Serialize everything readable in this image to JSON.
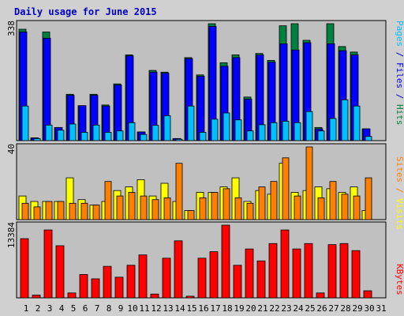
{
  "colors": {
    "background": "#d0d0d0",
    "panel": "#c0c0c0",
    "hits": "#008040",
    "files": "#0000ff",
    "pages": "#00c0ff",
    "visits": "#ffff00",
    "sites": "#ff8000",
    "kbytes": "#ff0000",
    "weekend": "#008040",
    "title": "#0000c0"
  },
  "chart_data": {
    "type": "bar",
    "title": "Daily usage for June 2015",
    "categories": [
      "1",
      "2",
      "3",
      "4",
      "5",
      "6",
      "7",
      "8",
      "9",
      "10",
      "11",
      "12",
      "13",
      "14",
      "15",
      "16",
      "17",
      "18",
      "19",
      "20",
      "21",
      "22",
      "23",
      "24",
      "25",
      "26",
      "27",
      "28",
      "29",
      "30",
      "31"
    ],
    "weekend_days": [
      "6",
      "7",
      "13",
      "14",
      "20",
      "21",
      "27",
      "28"
    ],
    "panels": [
      {
        "id": "hits-files-pages",
        "ymax_label": "338",
        "ylim": [
          0,
          338
        ],
        "right_labels": [
          "Pages",
          "Files",
          "Hits"
        ],
        "series": [
          {
            "name": "Hits",
            "values": [
              322,
              8,
              314,
              38,
              134,
              101,
              134,
              103,
              164,
              248,
              25,
              203,
              198,
              6,
              240,
              190,
              338,
              225,
              248,
              126,
              252,
              232,
              332,
              338,
              290,
              38,
              338,
              272,
              256,
              34,
              0
            ]
          },
          {
            "name": "Files",
            "values": [
              314,
              8,
              296,
              38,
              131,
              101,
              131,
              100,
              161,
              245,
              25,
              198,
              195,
              6,
              237,
              186,
              330,
              215,
              240,
              120,
              248,
              227,
              280,
              262,
              283,
              34,
              280,
              260,
              248,
              34,
              0
            ]
          },
          {
            "name": "Pages",
            "values": [
              100,
              6,
              45,
              30,
              48,
              24,
              45,
              24,
              28,
              52,
              18,
              44,
              72,
              4,
              100,
              24,
              62,
              80,
              60,
              28,
              46,
              52,
              56,
              52,
              84,
              28,
              64,
              118,
              100,
              12,
              0
            ]
          }
        ]
      },
      {
        "id": "visits-sites",
        "ymax_label": "40",
        "ylim": [
          0,
          40
        ],
        "right_labels": [
          "Sites",
          "Visits"
        ],
        "series": [
          {
            "name": "Visits",
            "values": [
              13,
              10,
              10,
              10,
              23,
              11,
              8,
              10,
              16,
              18,
              22,
              13,
              20,
              10,
              5,
              15,
              15,
              18,
              23,
              10,
              16,
              14,
              31,
              15,
              16,
              18,
              17,
              15,
              18,
              5,
              0
            ]
          },
          {
            "name": "Sites",
            "values": [
              9,
              7,
              10,
              10,
              9,
              9,
              8,
              21,
              13,
              15,
              13,
              11,
              12,
              31,
              5,
              12,
              15,
              17,
              12,
              9,
              18,
              21,
              34,
              13,
              40,
              12,
              21,
              14,
              13,
              23,
              0
            ]
          }
        ]
      },
      {
        "id": "kbytes",
        "ymax_label": "13384",
        "ylim": [
          0,
          13384
        ],
        "right_labels": [
          "KBytes"
        ],
        "series": [
          {
            "name": "KBytes",
            "values": [
              10900,
              500,
              12500,
              9600,
              900,
              4300,
              3500,
              5800,
              3800,
              6000,
              7900,
              700,
              7300,
              10500,
              300,
              7300,
              8500,
              13384,
              6000,
              9000,
              6800,
              10000,
              12500,
              9000,
              10000,
              900,
              9800,
              10000,
              8700,
              1300,
              0
            ]
          }
        ]
      }
    ]
  }
}
